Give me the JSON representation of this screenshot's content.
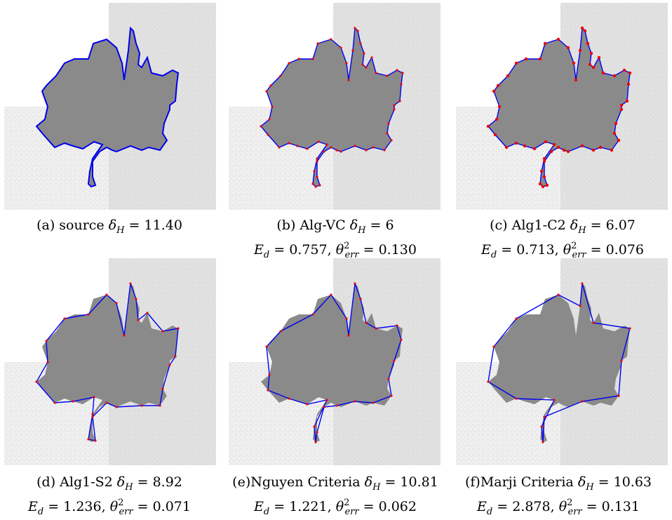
{
  "figure": {
    "panels": [
      {
        "id": "a",
        "caption_line1_prefix": "(a) source ",
        "caption_line1_value": "11.40",
        "has_metrics": false
      },
      {
        "id": "b",
        "caption_line1_prefix": "(b) Alg-VC ",
        "caption_line1_value": "6",
        "ed": "0.757",
        "theta": "0.130",
        "has_metrics": true
      },
      {
        "id": "c",
        "caption_line1_prefix": "(c) Alg1-C2 ",
        "caption_line1_value": "6.07",
        "ed": "0.713",
        "theta": "0.076",
        "has_metrics": true
      },
      {
        "id": "d",
        "caption_line1_prefix": "(d) Alg1-S2 ",
        "caption_line1_value": "8.92",
        "ed": "1.236",
        "theta": "0.071",
        "has_metrics": true
      },
      {
        "id": "e",
        "caption_line1_prefix": "(e)Nguyen Criteria ",
        "caption_line1_value": "10.81",
        "ed": "1.221",
        "theta": "0.062",
        "has_metrics": true
      },
      {
        "id": "f",
        "caption_line1_prefix": "(f)Marji Criteria ",
        "caption_line1_value": "10.63",
        "ed": "2.878",
        "theta": "0.131",
        "has_metrics": true
      }
    ],
    "symbols": {
      "delta": "δ",
      "delta_sub": "H",
      "equals": " = ",
      "ed": "E",
      "ed_sub": "d",
      "theta": "θ",
      "theta_sup": "2",
      "theta_sub": "err",
      "comma": ", "
    },
    "colors": {
      "contour_blue": "#0000ee",
      "vertex_red": "#ee0000",
      "leaf_gray": "#8a8a8a",
      "noise_light": "#f0f0f0",
      "noise_dark": "#cfcfcf"
    }
  }
}
